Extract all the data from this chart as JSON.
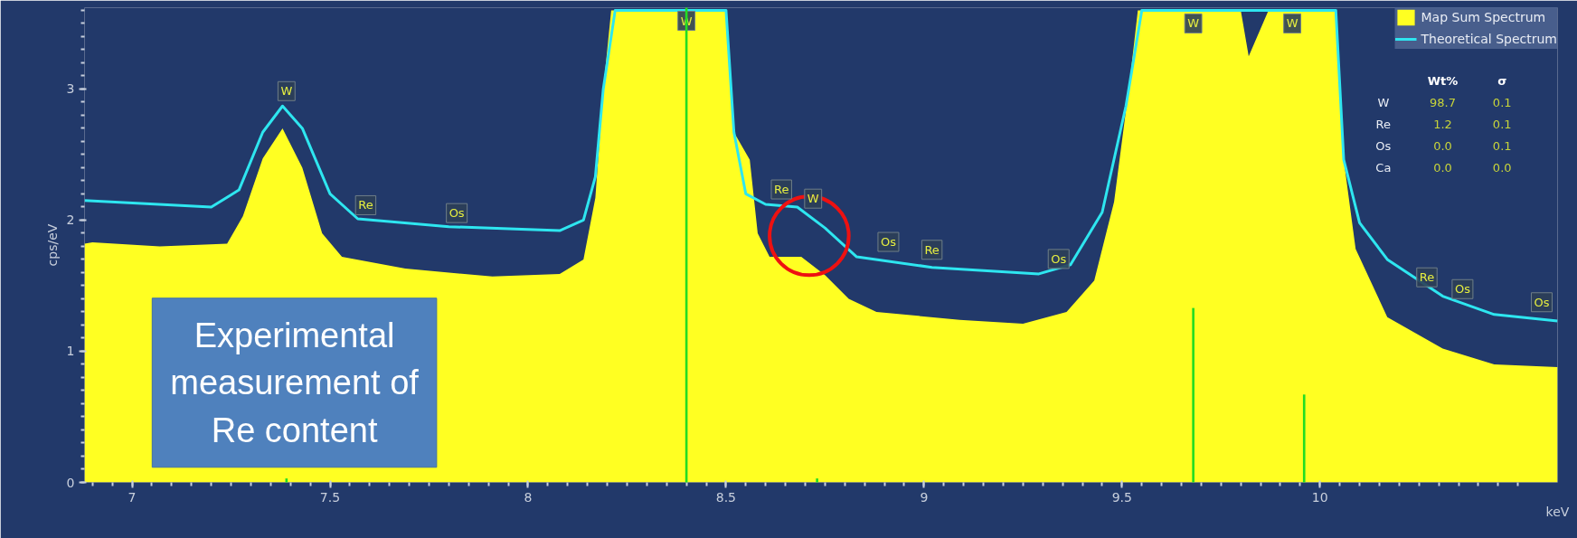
{
  "chart_data": {
    "type": "area",
    "xlabel": "keV",
    "ylabel": "cps/eV",
    "xlim": [
      6.88,
      10.6
    ],
    "ylim": [
      0,
      3.62
    ],
    "xticks": [
      7,
      7.5,
      8,
      8.5,
      9,
      9.5,
      10
    ],
    "yticks": [
      0,
      1,
      2,
      3
    ],
    "grid": false,
    "legend": "top right",
    "series": [
      {
        "name": "Map Sum Spectrum",
        "color": "#ffff22",
        "x": [
          6.88,
          6.9,
          7.07,
          7.24,
          7.28,
          7.33,
          7.38,
          7.43,
          7.48,
          7.53,
          7.69,
          7.91,
          8.08,
          8.14,
          8.17,
          8.19,
          8.21,
          8.5,
          8.52,
          8.56,
          8.58,
          8.61,
          8.69,
          8.75,
          8.81,
          8.88,
          9.09,
          9.25,
          9.36,
          9.43,
          9.48,
          9.52,
          9.54,
          9.8,
          9.82,
          9.87,
          10.04,
          10.06,
          10.09,
          10.17,
          10.31,
          10.44,
          10.6
        ],
        "values": [
          1.82,
          1.83,
          1.8,
          1.82,
          2.03,
          2.47,
          2.7,
          2.4,
          1.9,
          1.72,
          1.63,
          1.57,
          1.59,
          1.7,
          2.17,
          3.0,
          3.6,
          3.6,
          2.67,
          2.46,
          1.9,
          1.72,
          1.72,
          1.58,
          1.4,
          1.3,
          1.24,
          1.21,
          1.3,
          1.54,
          2.14,
          3.07,
          3.6,
          3.6,
          3.25,
          3.6,
          3.6,
          2.46,
          1.78,
          1.26,
          1.02,
          0.9,
          0.88
        ]
      },
      {
        "name": "Theoretical Spectrum",
        "type": "line",
        "color": "#2ee6f0",
        "x": [
          6.88,
          7.2,
          7.27,
          7.33,
          7.38,
          7.43,
          7.5,
          7.57,
          7.8,
          8.08,
          8.14,
          8.17,
          8.19,
          8.22,
          8.5,
          8.52,
          8.55,
          8.6,
          8.68,
          8.75,
          8.83,
          9.02,
          9.29,
          9.37,
          9.45,
          9.51,
          9.55,
          10.04,
          10.06,
          10.1,
          10.17,
          10.31,
          10.44,
          10.6
        ],
        "values": [
          2.15,
          2.1,
          2.23,
          2.67,
          2.87,
          2.7,
          2.2,
          2.01,
          1.95,
          1.92,
          2.0,
          2.33,
          3.0,
          3.6,
          3.6,
          2.67,
          2.2,
          2.12,
          2.1,
          1.94,
          1.72,
          1.64,
          1.59,
          1.66,
          2.06,
          2.87,
          3.6,
          3.6,
          2.46,
          1.98,
          1.7,
          1.42,
          1.28,
          1.23
        ]
      },
      {
        "type": "bar",
        "color": "#22dd22",
        "x": [
          7.39,
          8.4,
          8.73,
          9.68,
          9.96
        ],
        "values": [
          0.03,
          3.62,
          0.03,
          1.33,
          0.67
        ]
      }
    ],
    "annotations": [
      "Experimental measurement of Re content",
      {
        "text": "W",
        "x": 7.39,
        "y": 2.87
      },
      {
        "text": "Re",
        "x": 7.59,
        "y": 2.0
      },
      {
        "text": "Os",
        "x": 7.82,
        "y": 1.94
      },
      {
        "text": "W",
        "x": 8.4,
        "y": 3.62
      },
      {
        "text": "Re",
        "x": 8.64,
        "y": 2.12
      },
      {
        "text": "W",
        "x": 8.72,
        "y": 2.05
      },
      {
        "text": "Os",
        "x": 8.91,
        "y": 1.72
      },
      {
        "text": "Re",
        "x": 9.02,
        "y": 1.66
      },
      {
        "text": "Os",
        "x": 9.34,
        "y": 1.59
      },
      {
        "text": "W",
        "x": 9.68,
        "y": 3.6
      },
      {
        "text": "W",
        "x": 9.93,
        "y": 3.6
      },
      {
        "text": "Re",
        "x": 10.27,
        "y": 1.45
      },
      {
        "text": "Os",
        "x": 10.36,
        "y": 1.36
      },
      {
        "text": "Os",
        "x": 10.56,
        "y": 1.26
      },
      "Wt%",
      "σ",
      "W",
      "98.7",
      "0.1",
      "Re",
      "1.2",
      "0.1",
      "Os",
      "0.0",
      "0.1",
      "Ca",
      "0.0",
      "0.0"
    ]
  }
}
